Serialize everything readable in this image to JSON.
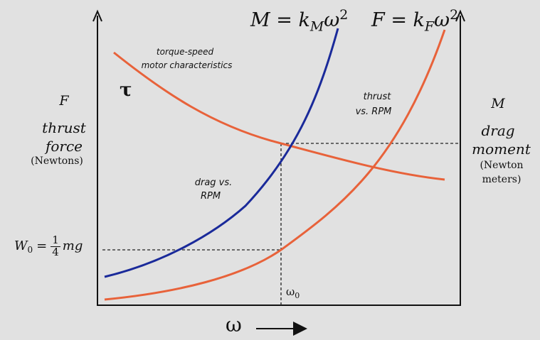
{
  "formulas": {
    "drag": {
      "lhs": "M",
      "eq": "=",
      "k": "k",
      "sub": "M",
      "omega": "ω",
      "sup": "2"
    },
    "thrust": {
      "lhs": "F",
      "eq": "=",
      "k": "k",
      "sub": "F",
      "omega": "ω",
      "sup": "2"
    }
  },
  "left_axis": {
    "symbol": "F",
    "line1": "thrust",
    "line2": "force",
    "unit": "(Newtons)"
  },
  "right_axis": {
    "symbol": "M",
    "line1": "drag",
    "line2": "moment",
    "unit_line1": "(Newton",
    "unit_line2": "meters)"
  },
  "tau": "τ",
  "annotations": {
    "torque_line1": "torque-speed",
    "torque_line2": "motor characteristics",
    "thrust_line1": "thrust",
    "thrust_line2": "vs. RPM",
    "drag_line1": "drag vs.",
    "drag_line2": "RPM"
  },
  "hover_weight": {
    "w": "W",
    "w_sub": "0",
    "eq": "=",
    "num": "1",
    "den": "4",
    "mg": "mg"
  },
  "omega0": {
    "symbol": "ω",
    "sub": "0"
  },
  "x_axis": {
    "symbol": "ω"
  },
  "colors": {
    "background": "#e1e1e1",
    "thrust_curve": "#e8623a",
    "torque_curve": "#e8623a",
    "drag_curve": "#1a2a9a",
    "axis": "#111111"
  }
}
